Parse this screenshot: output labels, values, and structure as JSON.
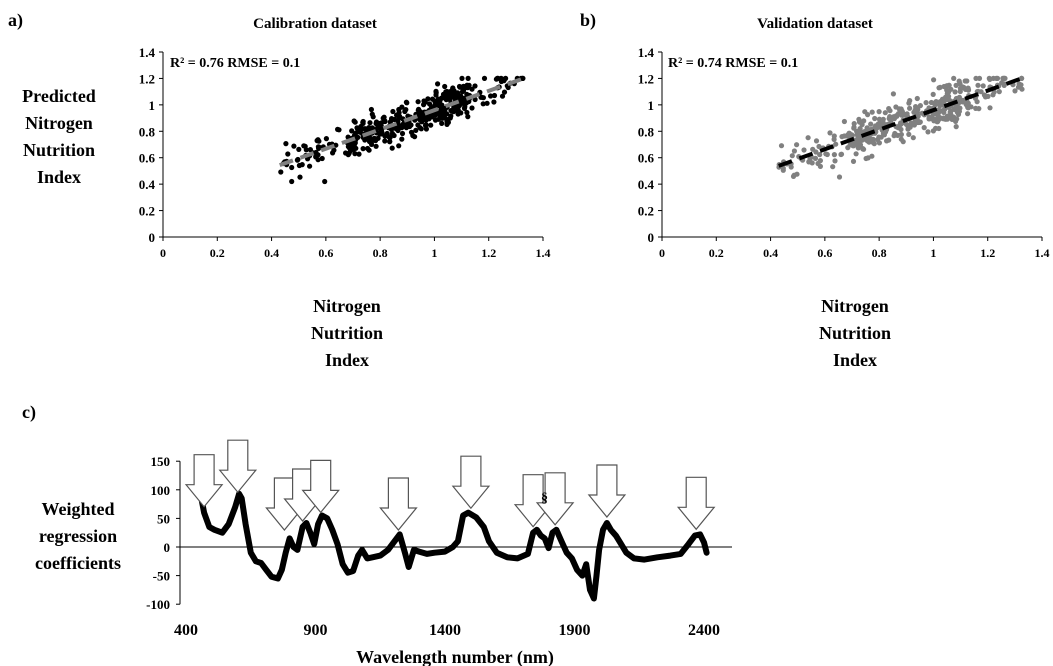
{
  "chart_data": [
    {
      "panel": "a)",
      "type": "scatter",
      "title": "Calibration dataset",
      "annotation": "R² = 0.76 RMSE = 0.1",
      "ylabel": [
        "Predicted",
        "Nitrogen",
        "Nutrition",
        "Index"
      ],
      "xlabel": [
        "Nitrogen",
        "Nutrition",
        "Index"
      ],
      "xlim": [
        0,
        1.4
      ],
      "ylim": [
        0,
        1.4
      ],
      "xticks": [
        "0",
        "0.2",
        "0.4",
        "0.6",
        "0.8",
        "1",
        "1.2",
        "1.4"
      ],
      "yticks": [
        "0",
        "0.2",
        "0.4",
        "0.6",
        "0.8",
        "1",
        "1.2",
        "1.4"
      ],
      "point_color": "#000000",
      "trend_color": "#808080",
      "trendline": {
        "slope": 0.73,
        "intercept": 0.23,
        "x_range": [
          0.43,
          1.33
        ]
      },
      "points": {
        "count": 420,
        "x_range": [
          0.43,
          1.33
        ],
        "y_range": [
          0.42,
          1.2
        ]
      }
    },
    {
      "panel": "b)",
      "type": "scatter",
      "title": "Validation dataset",
      "annotation": "R² = 0.74 RMSE = 0.1",
      "xlabel": [
        "Nitrogen",
        "Nutrition",
        "Index"
      ],
      "xlim": [
        0,
        1.4
      ],
      "ylim": [
        0,
        1.4
      ],
      "xticks": [
        "0",
        "0.2",
        "0.4",
        "0.6",
        "0.8",
        "1",
        "1.2",
        "1.4"
      ],
      "yticks": [
        "0",
        "0.2",
        "0.4",
        "0.6",
        "0.8",
        "1",
        "1.2",
        "1.4"
      ],
      "point_color": "#808080",
      "trend_color": "#000000",
      "trendline": {
        "slope": 0.74,
        "intercept": 0.22,
        "x_range": [
          0.43,
          1.33
        ]
      },
      "points": {
        "count": 420,
        "x_range": [
          0.43,
          1.33
        ],
        "y_range": [
          0.42,
          1.2
        ]
      }
    },
    {
      "panel": "c)",
      "type": "line",
      "ylabel": [
        "Weighted",
        "regression",
        "coefficients"
      ],
      "xlabel": "Wavelength number (nm)",
      "xlim": [
        400,
        2450
      ],
      "ylim": [
        -100,
        150
      ],
      "xticks": [
        400,
        900,
        1400,
        1900,
        2400
      ],
      "yticks": [
        -100,
        -50,
        0,
        50,
        100,
        150
      ],
      "line_color": "#000000",
      "series": [
        [
          450,
          108
        ],
        [
          470,
          60
        ],
        [
          490,
          35
        ],
        [
          510,
          30
        ],
        [
          540,
          25
        ],
        [
          565,
          40
        ],
        [
          590,
          70
        ],
        [
          605,
          93
        ],
        [
          615,
          85
        ],
        [
          630,
          40
        ],
        [
          650,
          -10
        ],
        [
          670,
          -25
        ],
        [
          690,
          -28
        ],
        [
          710,
          -40
        ],
        [
          730,
          -52
        ],
        [
          755,
          -55
        ],
        [
          770,
          -40
        ],
        [
          785,
          -10
        ],
        [
          800,
          15
        ],
        [
          815,
          0
        ],
        [
          830,
          -5
        ],
        [
          850,
          35
        ],
        [
          865,
          42
        ],
        [
          880,
          25
        ],
        [
          895,
          5
        ],
        [
          910,
          40
        ],
        [
          925,
          55
        ],
        [
          945,
          50
        ],
        [
          965,
          30
        ],
        [
          985,
          5
        ],
        [
          1005,
          -30
        ],
        [
          1025,
          -45
        ],
        [
          1045,
          -42
        ],
        [
          1065,
          -15
        ],
        [
          1080,
          -5
        ],
        [
          1100,
          -20
        ],
        [
          1120,
          -18
        ],
        [
          1150,
          -15
        ],
        [
          1180,
          -5
        ],
        [
          1205,
          10
        ],
        [
          1225,
          22
        ],
        [
          1245,
          -10
        ],
        [
          1260,
          -35
        ],
        [
          1280,
          -5
        ],
        [
          1300,
          -8
        ],
        [
          1330,
          -12
        ],
        [
          1360,
          -10
        ],
        [
          1400,
          -8
        ],
        [
          1430,
          0
        ],
        [
          1450,
          10
        ],
        [
          1470,
          55
        ],
        [
          1490,
          60
        ],
        [
          1520,
          52
        ],
        [
          1550,
          35
        ],
        [
          1570,
          10
        ],
        [
          1600,
          -10
        ],
        [
          1640,
          -18
        ],
        [
          1680,
          -20
        ],
        [
          1720,
          -12
        ],
        [
          1740,
          25
        ],
        [
          1755,
          30
        ],
        [
          1770,
          20
        ],
        [
          1785,
          15
        ],
        [
          1800,
          -2
        ],
        [
          1815,
          25
        ],
        [
          1830,
          30
        ],
        [
          1850,
          10
        ],
        [
          1870,
          -10
        ],
        [
          1890,
          -20
        ],
        [
          1910,
          -40
        ],
        [
          1930,
          -50
        ],
        [
          1945,
          -30
        ],
        [
          1960,
          -75
        ],
        [
          1975,
          -90
        ],
        [
          1985,
          -50
        ],
        [
          1995,
          -5
        ],
        [
          2010,
          30
        ],
        [
          2025,
          42
        ],
        [
          2040,
          30
        ],
        [
          2060,
          20
        ],
        [
          2080,
          5
        ],
        [
          2100,
          -10
        ],
        [
          2130,
          -20
        ],
        [
          2170,
          -22
        ],
        [
          2220,
          -18
        ],
        [
          2270,
          -15
        ],
        [
          2310,
          -12
        ],
        [
          2340,
          5
        ],
        [
          2365,
          20
        ],
        [
          2385,
          22
        ],
        [
          2400,
          8
        ],
        [
          2410,
          -10
        ]
      ],
      "arrows_at_wavelength": [
        470,
        600,
        780,
        850,
        920,
        1220,
        1500,
        1740,
        1825,
        2025,
        2370
      ]
    }
  ],
  "labels": {
    "panel_a": "a)",
    "panel_b": "b)",
    "panel_c": "c)",
    "c_special_mark": "§"
  }
}
